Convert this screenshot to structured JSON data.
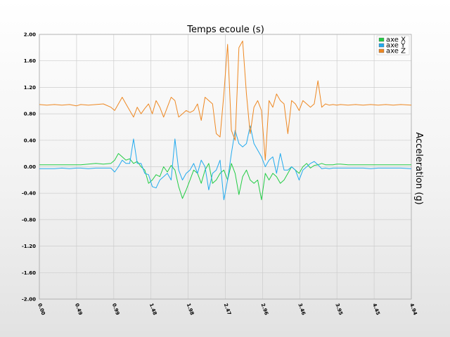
{
  "chart_data": {
    "type": "line",
    "title": "Temps ecoule (s)",
    "xlabel": "",
    "ylabel": "Acceleration (g)",
    "ylim": [
      -2.0,
      2.0
    ],
    "xlim": [
      0.0,
      4.94
    ],
    "grid": true,
    "legend_position": "top-right",
    "y_ticks": [
      "2.00",
      "1.60",
      "1.20",
      "0.80",
      "0.40",
      "0.00",
      "-0.40",
      "-0.80",
      "-1.20",
      "-1.60",
      "-2.00"
    ],
    "x_ticks": [
      "0.00",
      "0.49",
      "0.99",
      "1.48",
      "1.98",
      "2.47",
      "2.96",
      "3.46",
      "3.95",
      "4.45",
      "4.94"
    ],
    "x": [
      0.0,
      0.1,
      0.2,
      0.3,
      0.4,
      0.49,
      0.55,
      0.65,
      0.75,
      0.85,
      0.95,
      1.0,
      1.05,
      1.1,
      1.15,
      1.2,
      1.25,
      1.3,
      1.35,
      1.4,
      1.45,
      1.5,
      1.55,
      1.6,
      1.65,
      1.7,
      1.75,
      1.8,
      1.85,
      1.9,
      1.95,
      2.0,
      2.05,
      2.1,
      2.15,
      2.2,
      2.25,
      2.3,
      2.35,
      2.4,
      2.45,
      2.5,
      2.55,
      2.6,
      2.65,
      2.7,
      2.75,
      2.8,
      2.85,
      2.9,
      2.95,
      3.0,
      3.05,
      3.1,
      3.15,
      3.2,
      3.25,
      3.3,
      3.35,
      3.4,
      3.45,
      3.5,
      3.55,
      3.6,
      3.65,
      3.7,
      3.75,
      3.8,
      3.85,
      3.9,
      3.95,
      4.0,
      4.1,
      4.2,
      4.3,
      4.4,
      4.5,
      4.6,
      4.7,
      4.8,
      4.94
    ],
    "series": [
      {
        "name": "axe X",
        "color": "#22cc44",
        "values": [
          0.03,
          0.03,
          0.03,
          0.03,
          0.03,
          0.03,
          0.03,
          0.04,
          0.05,
          0.04,
          0.05,
          0.1,
          0.2,
          0.15,
          0.1,
          0.12,
          0.05,
          0.08,
          0.0,
          -0.05,
          -0.25,
          -0.2,
          -0.12,
          -0.15,
          0.0,
          -0.08,
          0.02,
          -0.05,
          -0.3,
          -0.48,
          -0.35,
          -0.2,
          -0.05,
          -0.1,
          -0.25,
          -0.05,
          0.05,
          -0.25,
          -0.2,
          -0.1,
          -0.05,
          -0.2,
          0.05,
          -0.1,
          -0.42,
          -0.15,
          -0.05,
          -0.2,
          -0.25,
          -0.2,
          -0.5,
          -0.1,
          -0.2,
          -0.1,
          -0.15,
          -0.25,
          -0.2,
          -0.1,
          0.0,
          -0.05,
          -0.1,
          0.0,
          0.05,
          -0.02,
          0.02,
          0.03,
          0.05,
          0.03,
          0.03,
          0.03,
          0.04,
          0.04,
          0.03,
          0.03,
          0.03,
          0.03,
          0.03,
          0.03,
          0.03,
          0.03,
          0.03
        ]
      },
      {
        "name": "axe Y",
        "color": "#22aaee",
        "values": [
          -0.03,
          -0.03,
          -0.03,
          -0.02,
          -0.03,
          -0.02,
          -0.02,
          -0.03,
          -0.02,
          -0.02,
          -0.02,
          -0.08,
          0.0,
          0.1,
          0.05,
          0.05,
          0.42,
          0.05,
          0.05,
          -0.1,
          -0.12,
          -0.3,
          -0.32,
          -0.2,
          -0.15,
          -0.1,
          -0.2,
          0.42,
          -0.05,
          -0.2,
          -0.1,
          -0.05,
          0.05,
          -0.1,
          0.1,
          0.0,
          -0.35,
          -0.1,
          -0.05,
          0.1,
          -0.5,
          -0.2,
          0.2,
          0.55,
          0.35,
          0.3,
          0.35,
          0.62,
          0.35,
          0.25,
          0.15,
          0.0,
          0.1,
          0.15,
          -0.1,
          0.2,
          -0.05,
          -0.05,
          0.0,
          -0.05,
          -0.2,
          -0.05,
          0.0,
          0.05,
          0.08,
          0.03,
          -0.03,
          -0.02,
          -0.03,
          -0.02,
          -0.02,
          -0.02,
          -0.02,
          -0.02,
          -0.02,
          -0.03,
          -0.02,
          -0.02,
          -0.02,
          -0.02,
          -0.03
        ]
      },
      {
        "name": "axe Z",
        "color": "#ee8822",
        "values": [
          0.94,
          0.93,
          0.94,
          0.93,
          0.94,
          0.92,
          0.94,
          0.93,
          0.94,
          0.95,
          0.9,
          0.85,
          0.95,
          1.05,
          0.95,
          0.85,
          0.75,
          0.9,
          0.8,
          0.88,
          0.95,
          0.8,
          1.0,
          0.9,
          0.75,
          0.9,
          1.05,
          1.0,
          0.75,
          0.8,
          0.85,
          0.82,
          0.85,
          0.95,
          0.7,
          1.05,
          1.0,
          0.95,
          0.5,
          0.45,
          1.1,
          1.85,
          0.55,
          0.4,
          1.8,
          1.9,
          1.1,
          0.5,
          0.9,
          1.0,
          0.85,
          0.1,
          1.0,
          0.9,
          1.1,
          1.0,
          0.95,
          0.5,
          1.0,
          0.95,
          0.85,
          1.0,
          0.95,
          0.9,
          0.95,
          1.3,
          0.9,
          0.95,
          0.93,
          0.94,
          0.93,
          0.94,
          0.93,
          0.94,
          0.93,
          0.94,
          0.93,
          0.94,
          0.93,
          0.94,
          0.93
        ]
      }
    ]
  }
}
